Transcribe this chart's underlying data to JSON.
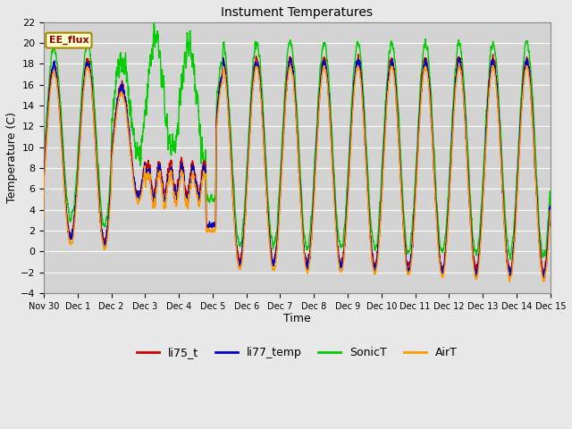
{
  "title": "Instument Temperatures",
  "xlabel": "Time",
  "ylabel": "Temperature (C)",
  "ylim": [
    -4,
    22
  ],
  "yticks": [
    -4,
    -2,
    0,
    2,
    4,
    6,
    8,
    10,
    12,
    14,
    16,
    18,
    20,
    22
  ],
  "colors": {
    "li75_t": "#cc0000",
    "li77_temp": "#0000cc",
    "SonicT": "#00cc00",
    "AirT": "#ff9900"
  },
  "annotation": "EE_flux",
  "fig_bg": "#e8e8e8",
  "plot_bg": "#d3d3d3",
  "linewidth": 1.0,
  "tick_labels": [
    "Nov 30",
    "Dec 1",
    "Dec 2",
    "Dec 3",
    "Dec 4",
    "Dec 5",
    "Dec 6",
    "Dec 7",
    "Dec 8",
    "Dec 9",
    "Dec 10",
    "Dec 11",
    "Dec 12",
    "Dec 13",
    "Dec 14",
    "Dec 15"
  ],
  "figsize": [
    6.4,
    4.8
  ],
  "dpi": 100
}
